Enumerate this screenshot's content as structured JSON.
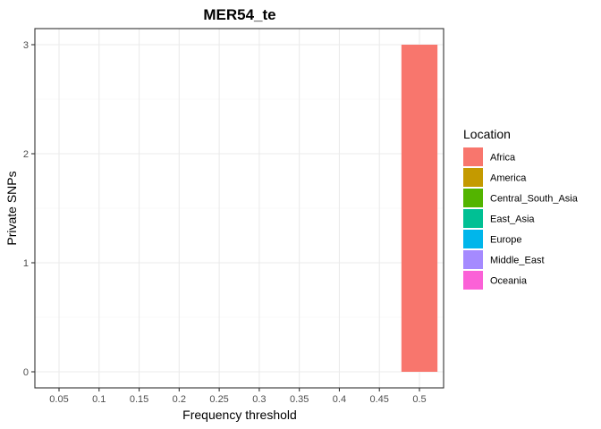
{
  "chart_data": {
    "type": "bar",
    "title": "MER54_te",
    "xlabel": "Frequency threshold",
    "ylabel": "Private SNPs",
    "x_ticks": [
      "0.05",
      "0.1",
      "0.15",
      "0.2",
      "0.25",
      "0.3",
      "0.35",
      "0.4",
      "0.45",
      "0.5"
    ],
    "y_ticks": [
      0,
      1,
      2,
      3
    ],
    "ylim": [
      0,
      3
    ],
    "grid": true,
    "legend": {
      "title": "Location",
      "position": "right"
    },
    "series": [
      {
        "name": "Africa",
        "color": "#F8766D",
        "values": [
          0,
          0,
          0,
          0,
          0,
          0,
          0,
          0,
          0,
          3
        ]
      },
      {
        "name": "America",
        "color": "#C49A00",
        "values": [
          0,
          0,
          0,
          0,
          0,
          0,
          0,
          0,
          0,
          0
        ]
      },
      {
        "name": "Central_South_Asia",
        "color": "#53B400",
        "values": [
          0,
          0,
          0,
          0,
          0,
          0,
          0,
          0,
          0,
          0
        ]
      },
      {
        "name": "East_Asia",
        "color": "#00C094",
        "values": [
          0,
          0,
          0,
          0,
          0,
          0,
          0,
          0,
          0,
          0
        ]
      },
      {
        "name": "Europe",
        "color": "#00B6EB",
        "values": [
          0,
          0,
          0,
          0,
          0,
          0,
          0,
          0,
          0,
          0
        ]
      },
      {
        "name": "Middle_East",
        "color": "#A58AFF",
        "values": [
          0,
          0,
          0,
          0,
          0,
          0,
          0,
          0,
          0,
          0
        ]
      },
      {
        "name": "Oceania",
        "color": "#FB61D7",
        "values": [
          0,
          0,
          0,
          0,
          0,
          0,
          0,
          0,
          0,
          0
        ]
      }
    ]
  }
}
